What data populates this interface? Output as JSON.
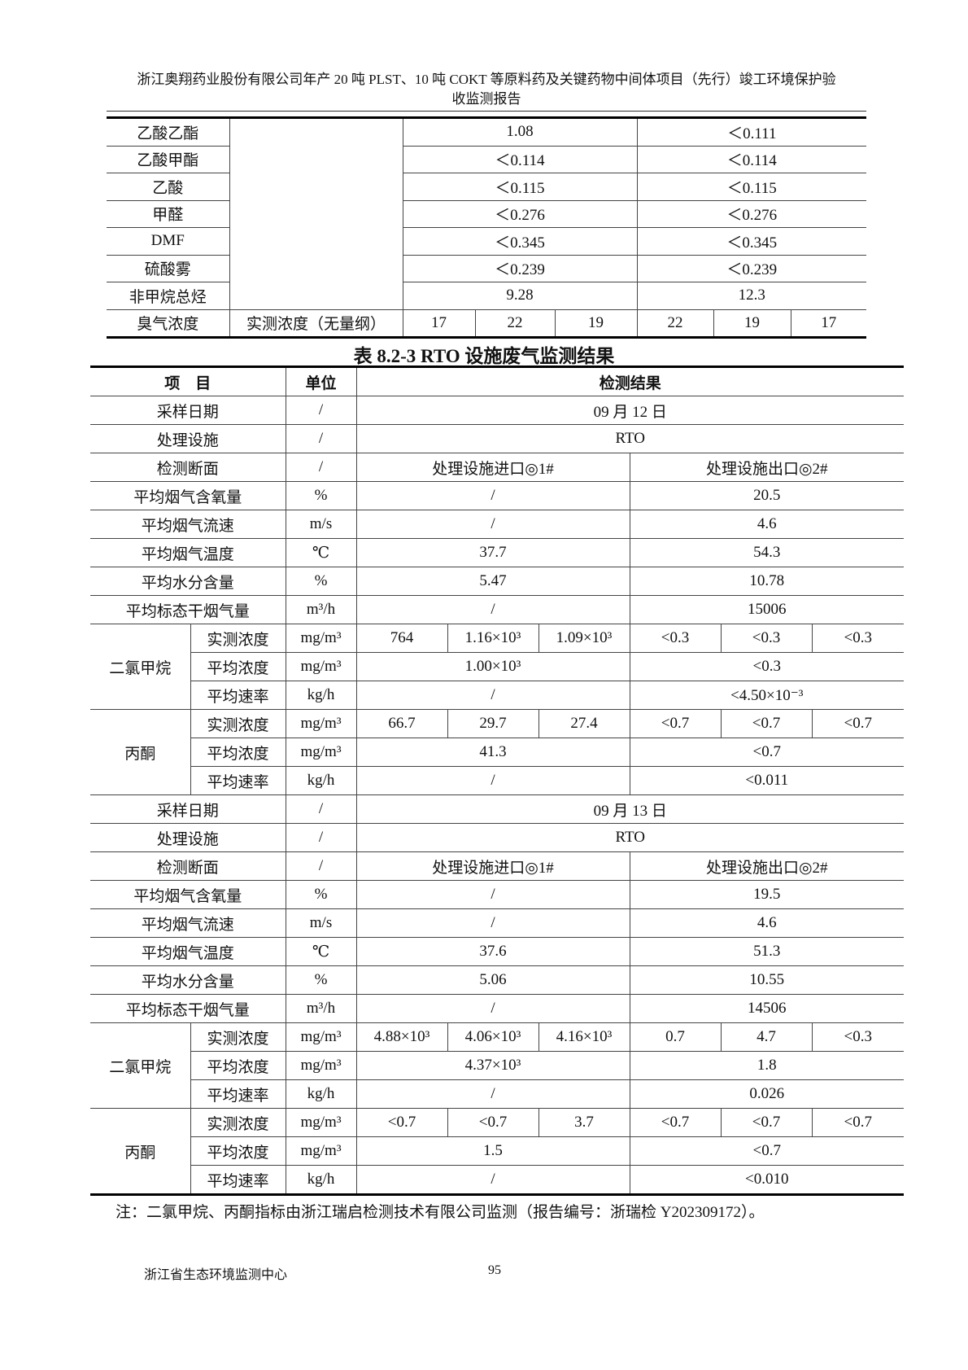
{
  "header": {
    "line1": "浙江奥翔药业股份有限公司年产 20 吨 PLST、10 吨 COKT 等原料药及关键药物中间体项目（先行）竣工环境保护验",
    "line2": "收监测报告"
  },
  "table1": {
    "rows": [
      {
        "name": "乙酸乙酯",
        "a": "1.08",
        "b": "＜0.111"
      },
      {
        "name": "乙酸甲酯",
        "a": "＜0.114",
        "b": "＜0.114"
      },
      {
        "name": "乙酸",
        "a": "＜0.115",
        "b": "＜0.115"
      },
      {
        "name": "甲醛",
        "a": "＜0.276",
        "b": "＜0.276"
      },
      {
        "name": "DMF",
        "a": "＜0.345",
        "b": "＜0.345"
      },
      {
        "name": "硫酸雾",
        "a": "＜0.239",
        "b": "＜0.239"
      },
      {
        "name": "非甲烷总烃",
        "a": "9.28",
        "b": "12.3"
      }
    ],
    "odor": {
      "name": "臭气浓度",
      "label": "实测浓度（无量纲）",
      "values": [
        "17",
        "22",
        "19",
        "22",
        "19",
        "17"
      ]
    }
  },
  "table2": {
    "caption": "表 8.2-3 RTO 设施废气监测结果",
    "head": {
      "item": "项　目",
      "unit": "单位",
      "result": "检测结果"
    },
    "days": [
      {
        "date_label": "采样日期",
        "date": "09 月 12 日",
        "facility_label": "处理设施",
        "facility": "RTO",
        "section_label": "检测断面",
        "inlet": "处理设施进口◎1#",
        "outlet": "处理设施出口◎2#",
        "slash": "/",
        "params": [
          {
            "label": "平均烟气含氧量",
            "unit": "%",
            "in": "/",
            "out": "20.5"
          },
          {
            "label": "平均烟气流速",
            "unit": "m/s",
            "in": "/",
            "out": "4.6"
          },
          {
            "label": "平均烟气温度",
            "unit": "℃",
            "in": "37.7",
            "out": "54.3"
          },
          {
            "label": "平均水分含量",
            "unit": "%",
            "in": "5.47",
            "out": "10.78"
          },
          {
            "label": "平均标态干烟气量",
            "unit": "m³/h",
            "in": "/",
            "out": "15006"
          }
        ],
        "pollutants": [
          {
            "name": "二氯甲烷",
            "measured_label": "实测浓度",
            "measured_unit": "mg/m³",
            "measured": [
              "764",
              "1.16×10³",
              "1.09×10³",
              "<0.3",
              "<0.3",
              "<0.3"
            ],
            "avg_label": "平均浓度",
            "avg_unit": "mg/m³",
            "avg_in": "1.00×10³",
            "avg_out": "<0.3",
            "rate_label": "平均速率",
            "rate_unit": "kg/h",
            "rate_in": "/",
            "rate_out": "<4.50×10⁻³"
          },
          {
            "name": "丙酮",
            "measured_label": "实测浓度",
            "measured_unit": "mg/m³",
            "measured": [
              "66.7",
              "29.7",
              "27.4",
              "<0.7",
              "<0.7",
              "<0.7"
            ],
            "avg_label": "平均浓度",
            "avg_unit": "mg/m³",
            "avg_in": "41.3",
            "avg_out": "<0.7",
            "rate_label": "平均速率",
            "rate_unit": "kg/h",
            "rate_in": "/",
            "rate_out": "<0.011"
          }
        ]
      },
      {
        "date_label": "采样日期",
        "date": "09 月 13 日",
        "facility_label": "处理设施",
        "facility": "RTO",
        "section_label": "检测断面",
        "inlet": "处理设施进口◎1#",
        "outlet": "处理设施出口◎2#",
        "slash": "/",
        "params": [
          {
            "label": "平均烟气含氧量",
            "unit": "%",
            "in": "/",
            "out": "19.5"
          },
          {
            "label": "平均烟气流速",
            "unit": "m/s",
            "in": "/",
            "out": "4.6"
          },
          {
            "label": "平均烟气温度",
            "unit": "℃",
            "in": "37.6",
            "out": "51.3"
          },
          {
            "label": "平均水分含量",
            "unit": "%",
            "in": "5.06",
            "out": "10.55"
          },
          {
            "label": "平均标态干烟气量",
            "unit": "m³/h",
            "in": "/",
            "out": "14506"
          }
        ],
        "pollutants": [
          {
            "name": "二氯甲烷",
            "measured_label": "实测浓度",
            "measured_unit": "mg/m³",
            "measured": [
              "4.88×10³",
              "4.06×10³",
              "4.16×10³",
              "0.7",
              "4.7",
              "<0.3"
            ],
            "avg_label": "平均浓度",
            "avg_unit": "mg/m³",
            "avg_in": "4.37×10³",
            "avg_out": "1.8",
            "rate_label": "平均速率",
            "rate_unit": "kg/h",
            "rate_in": "/",
            "rate_out": "0.026"
          },
          {
            "name": "丙酮",
            "measured_label": "实测浓度",
            "measured_unit": "mg/m³",
            "measured": [
              "<0.7",
              "<0.7",
              "3.7",
              "<0.7",
              "<0.7",
              "<0.7"
            ],
            "avg_label": "平均浓度",
            "avg_unit": "mg/m³",
            "avg_in": "1.5",
            "avg_out": "<0.7",
            "rate_label": "平均速率",
            "rate_unit": "kg/h",
            "rate_in": "/",
            "rate_out": "<0.010"
          }
        ]
      }
    ]
  },
  "note": "注：二氯甲烷、丙酮指标由浙江瑞启检测技术有限公司监测（报告编号：浙瑞检 Y202309172）。",
  "footer": {
    "org": "浙江省生态环境监测中心",
    "page": "95"
  }
}
